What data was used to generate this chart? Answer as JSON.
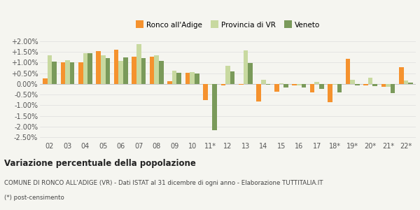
{
  "years": [
    "02",
    "03",
    "04",
    "05",
    "06",
    "07",
    "08",
    "09",
    "10",
    "11*",
    "12",
    "13",
    "14",
    "15",
    "16",
    "17",
    "18*",
    "19*",
    "20*",
    "21*",
    "22*"
  ],
  "ronco": [
    0.27,
    1.02,
    1.02,
    1.52,
    1.6,
    1.28,
    1.28,
    0.12,
    0.52,
    -0.76,
    -0.08,
    -0.05,
    -0.82,
    -0.35,
    -0.08,
    -0.38,
    -0.85,
    1.18,
    -0.08,
    -0.15,
    0.78
  ],
  "provincia": [
    1.32,
    1.1,
    1.44,
    1.32,
    1.08,
    1.85,
    1.35,
    0.62,
    0.54,
    -0.03,
    0.83,
    1.58,
    0.2,
    0.02,
    -0.08,
    0.1,
    -0.05,
    0.18,
    0.3,
    -0.12,
    0.15
  ],
  "veneto": [
    1.05,
    1.02,
    1.42,
    1.22,
    1.23,
    1.22,
    1.08,
    0.52,
    0.5,
    -2.17,
    0.57,
    0.97,
    -0.05,
    -0.18,
    -0.18,
    -0.22,
    -0.38,
    -0.06,
    -0.1,
    -0.43,
    0.05
  ],
  "color_ronco": "#f5922e",
  "color_provincia": "#c8d9a0",
  "color_veneto": "#7a9a5a",
  "bg_color": "#f5f5f0",
  "ylim": [
    -2.65,
    2.25
  ],
  "yticks": [
    -2.5,
    -2.0,
    -1.5,
    -1.0,
    -0.5,
    0.0,
    0.5,
    1.0,
    1.5,
    2.0
  ],
  "title": "Variazione percentuale della popolazione",
  "subtitle": "COMUNE DI RONCO ALL'ADIGE (VR) - Dati ISTAT al 31 dicembre di ogni anno - Elaborazione TUTTITALIA.IT",
  "footnote": "(*) post-censimento",
  "legend_labels": [
    "Ronco all'Adige",
    "Provincia di VR",
    "Veneto"
  ]
}
